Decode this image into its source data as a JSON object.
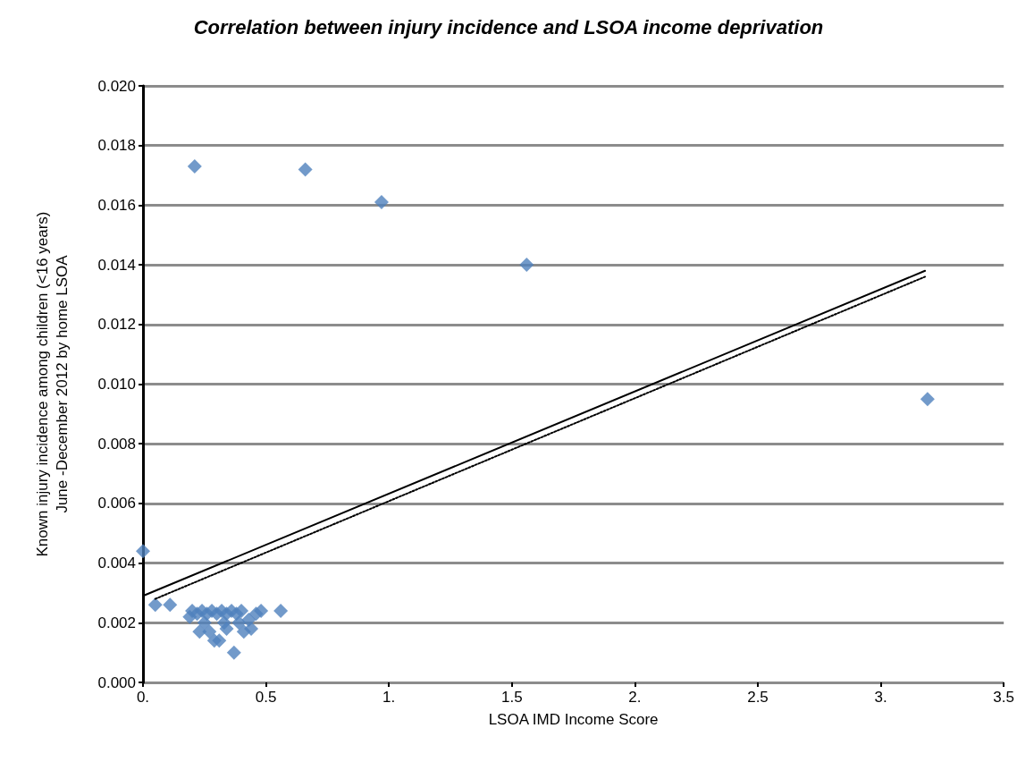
{
  "chart_data": {
    "type": "scatter",
    "title": "Correlation between injury incidence and LSOA income deprivation",
    "xlabel": "LSOA IMD Income Score",
    "ylabel": "Known injury incidence among children (<16 years)\nJune -December 2012 by home LSOA",
    "xlim": [
      0,
      3.5
    ],
    "xticks": [
      {
        "value": 0,
        "label": "0."
      },
      0.5,
      {
        "value": 1,
        "label": "1."
      },
      1.5,
      {
        "value": 2,
        "label": "2."
      },
      2.5,
      {
        "value": 3,
        "label": "3."
      },
      3.5
    ],
    "ylim": [
      0,
      0.02
    ],
    "yticks": [
      {
        "value": 0,
        "label": "0.000"
      },
      0.002,
      0.004,
      0.006,
      0.008,
      {
        "value": 0.01,
        "label": "0.010"
      },
      0.012,
      0.014,
      0.016,
      0.018,
      {
        "value": 0.02,
        "label": "0.020"
      }
    ],
    "grid": "y",
    "series": [
      {
        "color": "#4f81bd",
        "marker": "diamond",
        "x": [
          0.21,
          0.66,
          0.97,
          1.56,
          3.19,
          0.0,
          0.05,
          0.11,
          0.56,
          0.37,
          0.23,
          0.31,
          0.29,
          0.27,
          0.44,
          0.41,
          0.34,
          0.19,
          0.2,
          0.22,
          0.24,
          0.26,
          0.28,
          0.3,
          0.32,
          0.34,
          0.36,
          0.38,
          0.4,
          0.46,
          0.48,
          0.25,
          0.33,
          0.39,
          0.43
        ],
        "values": [
          0.0173,
          0.0172,
          0.0161,
          0.014,
          0.0095,
          0.0044,
          0.0026,
          0.0026,
          0.0024,
          0.001,
          0.0017,
          0.0014,
          0.0014,
          0.0017,
          0.0018,
          0.0017,
          0.0018,
          0.0022,
          0.0024,
          0.0023,
          0.0024,
          0.0023,
          0.0024,
          0.0023,
          0.0024,
          0.0023,
          0.0024,
          0.0023,
          0.0024,
          0.0023,
          0.0024,
          0.002,
          0.002,
          0.002,
          0.0021
        ]
      },
      {
        "type": "line",
        "color": "#000000",
        "line_style": "solid",
        "marker": "none",
        "x": [
          0,
          3.18
        ],
        "values": [
          0.0029,
          0.0138
        ]
      },
      {
        "type": "line",
        "color": "#000000",
        "line_style": "dotted",
        "marker": "none",
        "x": [
          0.05,
          3.18
        ],
        "values": [
          0.0028,
          0.0136
        ]
      }
    ]
  }
}
